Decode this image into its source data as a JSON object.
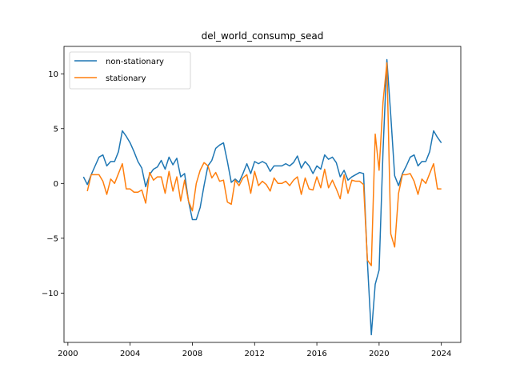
{
  "chart_data": {
    "type": "line",
    "title": "del_world_consump_sead",
    "xlabel": "",
    "ylabel": "",
    "xlim": [
      1999.75,
      2025.25
    ],
    "ylim": [
      -14.5,
      12.5
    ],
    "xticks": [
      2000,
      2004,
      2008,
      2012,
      2016,
      2020,
      2024
    ],
    "xtick_labels": [
      "2000",
      "2004",
      "2008",
      "2012",
      "2016",
      "2020",
      "2024"
    ],
    "yticks": [
      -10,
      -5,
      0,
      5,
      10
    ],
    "ytick_labels": [
      "−10",
      "−5",
      "0",
      "5",
      "10"
    ],
    "grid": false,
    "legend_position": "top-left",
    "series": [
      {
        "name": "non-stationary",
        "color": "#1f77b4",
        "x": [
          2001.0,
          2001.25,
          2001.5,
          2001.75,
          2002.0,
          2002.25,
          2002.5,
          2002.75,
          2003.0,
          2003.25,
          2003.5,
          2003.75,
          2004.0,
          2004.25,
          2004.5,
          2004.75,
          2005.0,
          2005.25,
          2005.5,
          2005.75,
          2006.0,
          2006.25,
          2006.5,
          2006.75,
          2007.0,
          2007.25,
          2007.5,
          2007.75,
          2008.0,
          2008.25,
          2008.5,
          2008.75,
          2009.0,
          2009.25,
          2009.5,
          2009.75,
          2010.0,
          2010.25,
          2010.5,
          2010.75,
          2011.0,
          2011.25,
          2011.5,
          2011.75,
          2012.0,
          2012.25,
          2012.5,
          2012.75,
          2013.0,
          2013.25,
          2013.5,
          2013.75,
          2014.0,
          2014.25,
          2014.5,
          2014.75,
          2015.0,
          2015.25,
          2015.5,
          2015.75,
          2016.0,
          2016.25,
          2016.5,
          2016.75,
          2017.0,
          2017.25,
          2017.5,
          2017.75,
          2018.0,
          2018.25,
          2018.5,
          2018.75,
          2019.0,
          2019.25,
          2019.5,
          2019.75,
          2020.0,
          2020.25,
          2020.5,
          2020.75,
          2021.0,
          2021.25,
          2021.5,
          2021.75,
          2022.0,
          2022.25,
          2022.5,
          2022.75,
          2023.0,
          2023.25,
          2023.5,
          2023.75,
          2024.0
        ],
        "y": [
          0.6,
          -0.1,
          0.8,
          1.6,
          2.4,
          2.6,
          1.6,
          2.0,
          2.0,
          2.9,
          4.8,
          4.3,
          3.7,
          2.9,
          2.0,
          1.4,
          -0.3,
          0.8,
          1.3,
          1.5,
          2.1,
          1.3,
          2.4,
          1.7,
          2.3,
          0.6,
          0.9,
          -1.6,
          -3.3,
          -3.3,
          -2.2,
          -0.2,
          1.6,
          2.1,
          3.2,
          3.5,
          3.7,
          2.0,
          0.1,
          0.4,
          0.1,
          0.9,
          1.8,
          0.9,
          2.0,
          1.8,
          2.0,
          1.8,
          1.1,
          1.6,
          1.6,
          1.6,
          1.8,
          1.6,
          1.9,
          2.5,
          1.4,
          2.0,
          1.6,
          0.9,
          1.6,
          1.3,
          2.6,
          2.2,
          2.4,
          1.9,
          0.6,
          1.2,
          0.3,
          0.6,
          0.8,
          1.0,
          0.9,
          -7.2,
          -13.8,
          -9.2,
          -7.9,
          2.9,
          11.3,
          6.2,
          0.7,
          -0.2,
          0.9,
          1.6,
          2.4,
          2.6,
          1.6,
          2.0,
          2.0,
          2.9,
          4.8,
          4.2,
          3.7
        ]
      },
      {
        "name": "stationary",
        "color": "#ff7f0e",
        "x": [
          2001.25,
          2001.5,
          2001.75,
          2002.0,
          2002.25,
          2002.5,
          2002.75,
          2003.0,
          2003.25,
          2003.5,
          2003.75,
          2004.0,
          2004.25,
          2004.5,
          2004.75,
          2005.0,
          2005.25,
          2005.5,
          2005.75,
          2006.0,
          2006.25,
          2006.5,
          2006.75,
          2007.0,
          2007.25,
          2007.5,
          2007.75,
          2008.0,
          2008.25,
          2008.5,
          2008.75,
          2009.0,
          2009.25,
          2009.5,
          2009.75,
          2010.0,
          2010.25,
          2010.5,
          2010.75,
          2011.0,
          2011.25,
          2011.5,
          2011.75,
          2012.0,
          2012.25,
          2012.5,
          2012.75,
          2013.0,
          2013.25,
          2013.5,
          2013.75,
          2014.0,
          2014.25,
          2014.5,
          2014.75,
          2015.0,
          2015.25,
          2015.5,
          2015.75,
          2016.0,
          2016.25,
          2016.5,
          2016.75,
          2017.0,
          2017.25,
          2017.5,
          2017.75,
          2018.0,
          2018.25,
          2018.5,
          2018.75,
          2019.0,
          2019.25,
          2019.5,
          2019.75,
          2020.0,
          2020.25,
          2020.5,
          2020.75,
          2021.0,
          2021.25,
          2021.5,
          2021.75,
          2022.0,
          2022.25,
          2022.5,
          2022.75,
          2023.0,
          2023.25,
          2023.5,
          2023.75,
          2024.0
        ],
        "y": [
          -0.7,
          0.8,
          0.8,
          0.8,
          0.2,
          -1.0,
          0.4,
          0.0,
          0.9,
          1.8,
          -0.5,
          -0.5,
          -0.8,
          -0.8,
          -0.6,
          -1.8,
          1.0,
          0.3,
          0.6,
          0.6,
          -0.9,
          1.1,
          -0.7,
          0.6,
          -1.6,
          0.3,
          -1.6,
          -2.5,
          0.0,
          1.2,
          1.9,
          1.6,
          0.5,
          1.0,
          0.2,
          0.3,
          -1.7,
          -1.9,
          0.3,
          -0.2,
          0.5,
          0.8,
          -0.9,
          1.1,
          -0.2,
          0.2,
          -0.1,
          -0.7,
          0.5,
          0.0,
          0.0,
          0.2,
          -0.2,
          0.3,
          0.6,
          -1.0,
          0.5,
          -0.5,
          -0.6,
          0.6,
          -0.4,
          1.3,
          -0.4,
          0.3,
          -0.5,
          -1.4,
          0.8,
          -0.9,
          0.3,
          0.2,
          0.2,
          -0.1,
          -7.0,
          -7.5,
          4.5,
          1.2,
          7.4,
          11.0,
          -4.6,
          -5.8,
          -0.9,
          0.8,
          0.8,
          0.9,
          0.2,
          -1.0,
          0.4,
          0.0,
          0.9,
          1.8,
          -0.5,
          -0.5
        ]
      }
    ]
  }
}
